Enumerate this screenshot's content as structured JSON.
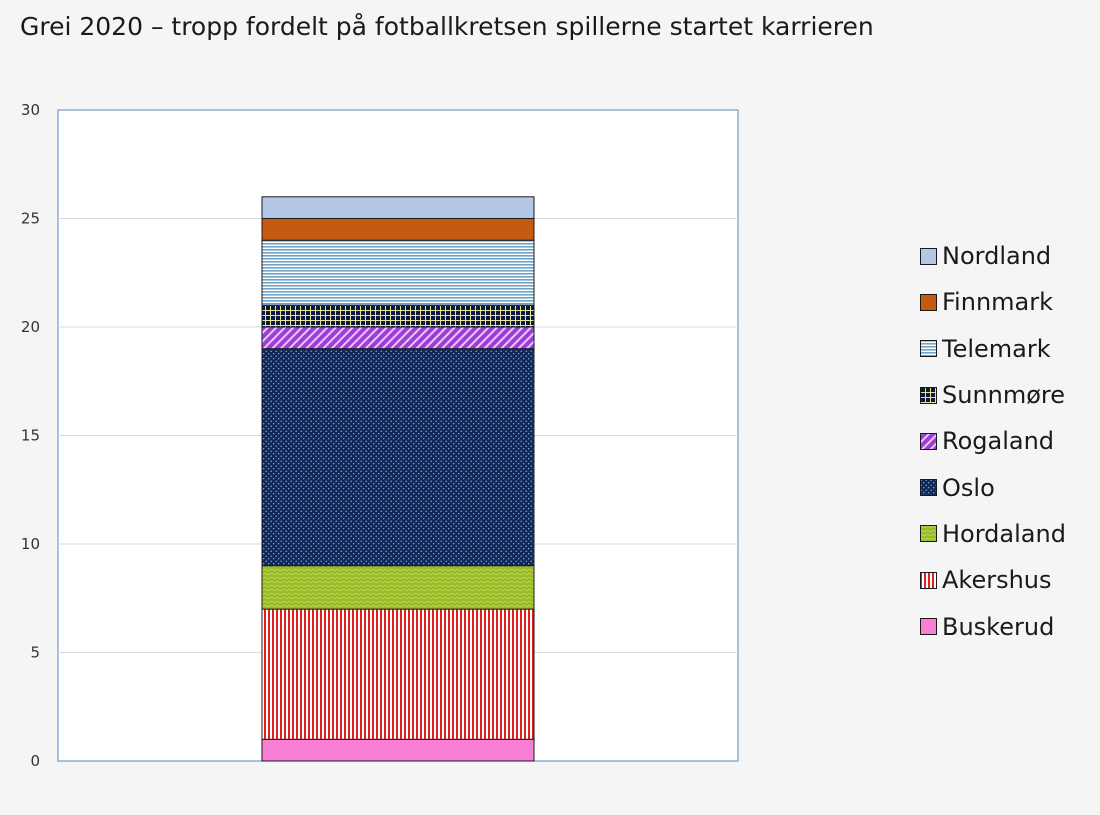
{
  "chart_data": {
    "type": "bar",
    "stacked": true,
    "title": "Grei 2020 – tropp fordelt på fotballkretsen spillerne startet karrieren",
    "xlabel": "",
    "ylabel": "",
    "ylim": [
      0,
      30
    ],
    "yticks": [
      "0",
      "5",
      "10",
      "15",
      "20",
      "25",
      "30"
    ],
    "categories": [
      ""
    ],
    "grid": true,
    "legend_position": "right",
    "series": [
      {
        "name": "Buskerud",
        "values": [
          1
        ],
        "color": "#f780d4",
        "pattern": "solid"
      },
      {
        "name": "Akershus",
        "values": [
          6
        ],
        "color": "#e02020",
        "pattern": "vertical-stripes"
      },
      {
        "name": "Hordaland",
        "values": [
          2
        ],
        "color": "#9bbb27",
        "pattern": "wave"
      },
      {
        "name": "Oslo",
        "values": [
          10
        ],
        "color": "#10295c",
        "pattern": "dots"
      },
      {
        "name": "Rogaland",
        "values": [
          1
        ],
        "color": "#9b3dd6",
        "pattern": "diagonal-stripes"
      },
      {
        "name": "Sunnmøre",
        "values": [
          1
        ],
        "color": "#0b1a3c",
        "pattern": "grid"
      },
      {
        "name": "Telemark",
        "values": [
          3
        ],
        "color": "#8cb8d6",
        "pattern": "horizontal-stripes"
      },
      {
        "name": "Finnmark",
        "values": [
          1
        ],
        "color": "#c55a11",
        "pattern": "solid"
      },
      {
        "name": "Nordland",
        "values": [
          1
        ],
        "color": "#b4c7e7",
        "pattern": "solid"
      }
    ]
  }
}
